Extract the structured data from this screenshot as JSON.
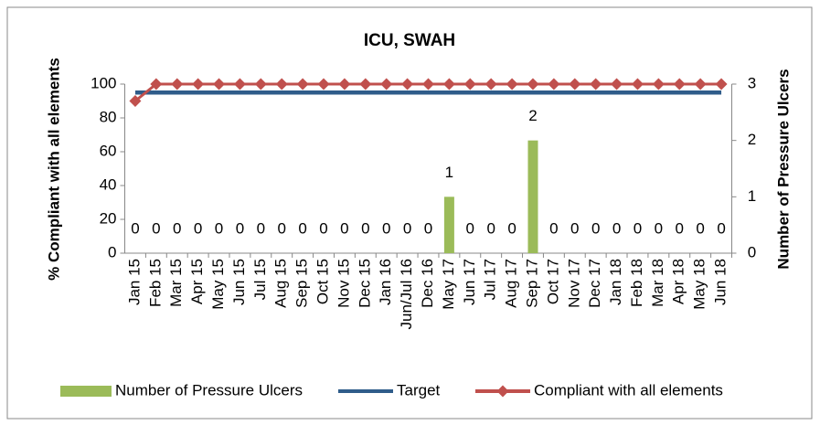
{
  "chart_data": {
    "type": "combo",
    "title": "ICU, SWAH",
    "ylabel": "% Compliant with all elements",
    "y2label": "Number of Pressure Ulcers",
    "categories": [
      "Jan 15",
      "Feb 15",
      "Mar 15",
      "Apr 15",
      "May 15",
      "Jun 15",
      "Jul 15",
      "Aug 15",
      "Sep 15",
      "Oct 15",
      "Nov 15",
      "Dec 15",
      "Jan 16",
      "Jun/Jul 16",
      "Dec 16",
      "May 17",
      "Jun 17",
      "Jul 17",
      "Aug 17",
      "Sep 17",
      "Oct 17",
      "Nov 17",
      "Dec 17",
      "Jan 18",
      "Feb 18",
      "Mar 18",
      "Apr 18",
      "May 18",
      "Jun 18"
    ],
    "series": [
      {
        "name": "Number of Pressure Ulcers",
        "type": "bar",
        "axis": "y2",
        "color": "#9bbb59",
        "values": [
          0,
          0,
          0,
          0,
          0,
          0,
          0,
          0,
          0,
          0,
          0,
          0,
          0,
          0,
          0,
          1,
          0,
          0,
          0,
          2,
          0,
          0,
          0,
          0,
          0,
          0,
          0,
          0,
          0
        ]
      },
      {
        "name": "Target",
        "type": "line",
        "color": "#2f5c8a",
        "values": [
          95,
          95,
          95,
          95,
          95,
          95,
          95,
          95,
          95,
          95,
          95,
          95,
          95,
          95,
          95,
          95,
          95,
          95,
          95,
          95,
          95,
          95,
          95,
          95,
          95,
          95,
          95,
          95,
          95
        ]
      },
      {
        "name": "Compliant with all elements",
        "type": "line-marker",
        "color": "#c0504d",
        "values": [
          90,
          100,
          100,
          100,
          100,
          100,
          100,
          100,
          100,
          100,
          100,
          100,
          100,
          100,
          100,
          100,
          100,
          100,
          100,
          100,
          100,
          100,
          100,
          100,
          100,
          100,
          100,
          100,
          100
        ]
      }
    ],
    "ylim": [
      0,
      100
    ],
    "yticks": [
      0,
      20,
      40,
      60,
      80,
      100
    ],
    "y2lim": [
      0,
      3
    ],
    "y2ticks": [
      0,
      1,
      2,
      3
    ]
  }
}
